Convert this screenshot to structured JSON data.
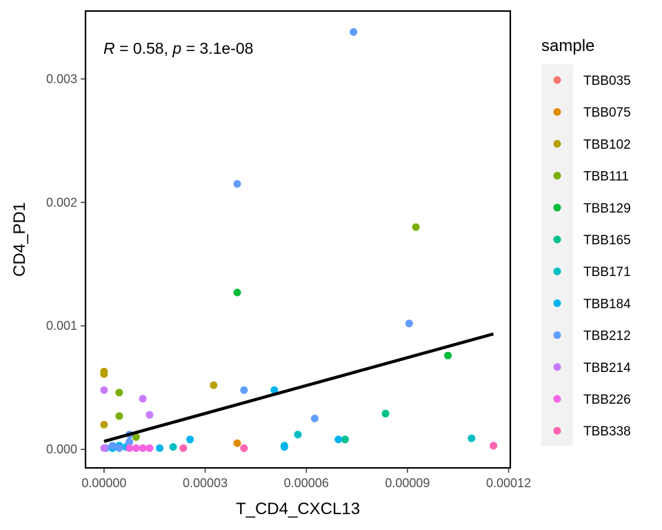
{
  "chart_data": {
    "type": "scatter",
    "xlabel": "T_CD4_CXCL13",
    "ylabel": "CD4_PD1",
    "xlim": [
      -5.5e-06,
      0.0001205
    ],
    "ylim": [
      -0.00015,
      0.00355
    ],
    "x_ticks": [
      0,
      3e-05,
      6e-05,
      9e-05,
      0.00012
    ],
    "x_tick_labels": [
      "0.00000",
      "0.00003",
      "0.00006",
      "0.00009",
      "0.00012"
    ],
    "y_ticks": [
      0,
      0.001,
      0.002,
      0.003
    ],
    "y_tick_labels": [
      "0.000",
      "0.001",
      "0.002",
      "0.003"
    ],
    "grid": false,
    "legend_position": "right",
    "legend_title": "sample",
    "annotation": {
      "r_symbol": "R",
      "r_text": " = 0.58, ",
      "p_symbol": "p",
      "p_text": " = 3.1e-08"
    },
    "regression_line": {
      "x": [
        0,
        0.0001155
      ],
      "y": [
        6.5e-05,
        0.000935
      ],
      "color": "#000000"
    },
    "series": [
      {
        "name": "TBB035",
        "color": "#F8766D",
        "points": []
      },
      {
        "name": "TBB075",
        "color": "#DE8C00",
        "points": [
          [
            3.95e-05,
            5e-05
          ]
        ]
      },
      {
        "name": "TBB102",
        "color": "#B79F00",
        "points": [
          [
            0,
            0.00063
          ],
          [
            0,
            0.00061
          ],
          [
            0,
            0.0002
          ],
          [
            3.25e-05,
            0.00052
          ]
        ]
      },
      {
        "name": "TBB111",
        "color": "#7CAE00",
        "points": [
          [
            4.5e-06,
            0.00046
          ],
          [
            4.5e-06,
            0.00027
          ],
          [
            9.5e-06,
            0.0001
          ],
          [
            9.25e-05,
            0.0018
          ]
        ]
      },
      {
        "name": "TBB129",
        "color": "#00BA38",
        "points": [
          [
            3.95e-05,
            0.00127
          ],
          [
            0.000102,
            0.00076
          ]
        ]
      },
      {
        "name": "TBB165",
        "color": "#00C08B",
        "points": [
          [
            8.35e-05,
            0.00029
          ],
          [
            7.15e-05,
            8e-05
          ]
        ]
      },
      {
        "name": "TBB171",
        "color": "#00BFC4",
        "points": [
          [
            0.000109,
            9e-05
          ],
          [
            5.75e-05,
            0.00012
          ],
          [
            5.35e-05,
            3e-05
          ],
          [
            2.05e-05,
            2e-05
          ]
        ]
      },
      {
        "name": "TBB184",
        "color": "#00B4F0",
        "points": [
          [
            2.55e-05,
            8e-05
          ],
          [
            1.65e-05,
            1e-05
          ],
          [
            6.95e-05,
            8e-05
          ],
          [
            5.35e-05,
            2e-05
          ],
          [
            5.05e-05,
            0.00048
          ],
          [
            4.5e-06,
            3e-05
          ],
          [
            2.5e-06,
            1e-05
          ],
          [
            6.5e-06,
            2e-05
          ]
        ]
      },
      {
        "name": "TBB212",
        "color": "#619CFF",
        "points": [
          [
            7.4e-05,
            0.00338
          ],
          [
            3.95e-05,
            0.00215
          ],
          [
            9.05e-05,
            0.00102
          ],
          [
            4.15e-05,
            0.00048
          ],
          [
            6.25e-05,
            0.00025
          ],
          [
            7.5e-06,
            0.00012
          ],
          [
            7.5e-06,
            6e-05
          ],
          [
            2.5e-06,
            3e-05
          ],
          [
            4.5e-06,
            1e-05
          ],
          [
            5e-07,
            1e-05
          ]
        ]
      },
      {
        "name": "TBB214",
        "color": "#C77CFF",
        "points": [
          [
            0,
            0.00048
          ],
          [
            1.15e-05,
            0.00041
          ],
          [
            1.35e-05,
            0.00028
          ],
          [
            0,
            1e-05
          ]
        ]
      },
      {
        "name": "TBB226",
        "color": "#F564E3",
        "points": [
          [
            9.5e-06,
            1e-05
          ],
          [
            1.15e-05,
            1e-05
          ],
          [
            1.35e-05,
            1e-05
          ],
          [
            7.5e-06,
            1e-05
          ]
        ]
      },
      {
        "name": "TBB338",
        "color": "#FF64B0",
        "points": [
          [
            0.0001155,
            3e-05
          ],
          [
            4.15e-05,
            1e-05
          ],
          [
            2.35e-05,
            1e-05
          ]
        ]
      }
    ]
  }
}
